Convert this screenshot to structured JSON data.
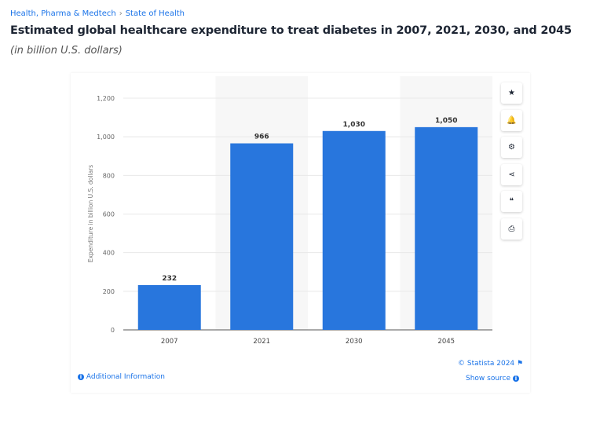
{
  "breadcrumb": [
    "Health, Pharma & Medtech",
    "State of Health"
  ],
  "title": "Estimated global healthcare expenditure to treat diabetes in 2007, 2021, 2030, and 2045",
  "subtitle": "(in billion U.S. dollars)",
  "toolbar": [
    {
      "icon": "star-icon",
      "glyph": "★"
    },
    {
      "icon": "bell-icon",
      "glyph": "🔔"
    },
    {
      "icon": "gear-icon",
      "glyph": "⚙"
    },
    {
      "icon": "share-icon",
      "glyph": "⋖"
    },
    {
      "icon": "quote-icon",
      "glyph": "❝"
    },
    {
      "icon": "print-icon",
      "glyph": "⎙"
    }
  ],
  "footer": {
    "copyright": "© Statista 2024",
    "show_source": "Show source",
    "additional_info": "Additional Information"
  },
  "colors": {
    "bar": "#2876dd",
    "accent": "#1a73e8"
  },
  "chart_data": {
    "type": "bar",
    "categories": [
      "2007",
      "2021",
      "2030",
      "2045"
    ],
    "values": [
      232,
      966,
      1030,
      1050
    ],
    "data_labels": [
      "232",
      "966",
      "1,030",
      "1,050"
    ],
    "ylabel": "Expenditure in billion U.S. dollars",
    "ylim": [
      0,
      1200
    ],
    "yticks": [
      0,
      200,
      400,
      600,
      800,
      1000,
      1200
    ],
    "ytick_labels": [
      "0",
      "200",
      "400",
      "600",
      "800",
      "1,000",
      "1,200"
    ],
    "grid": true
  }
}
